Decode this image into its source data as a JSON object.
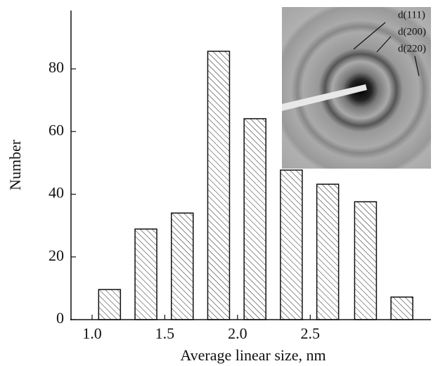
{
  "chart_data": {
    "type": "bar",
    "x_label": "Average linear size, nm",
    "y_label": "Number",
    "x": [
      1.12,
      1.37,
      1.62,
      1.87,
      2.12,
      2.37,
      2.62,
      2.88,
      3.13
    ],
    "values": [
      9.6,
      28.9,
      34,
      85.6,
      64.1,
      47.7,
      43.2,
      37.6,
      7.2
    ],
    "xlim": [
      0.855,
      3.33
    ],
    "ylim": [
      0,
      98.6
    ],
    "xticks": [
      {
        "value": 1,
        "label": "1.0"
      },
      1.5,
      {
        "value": 2,
        "label": "2.0"
      },
      2.5
    ],
    "yticks": [
      0,
      20,
      40,
      60,
      80
    ],
    "annotations": [
      "d(111)",
      "d(200)",
      "d(220)"
    ]
  }
}
